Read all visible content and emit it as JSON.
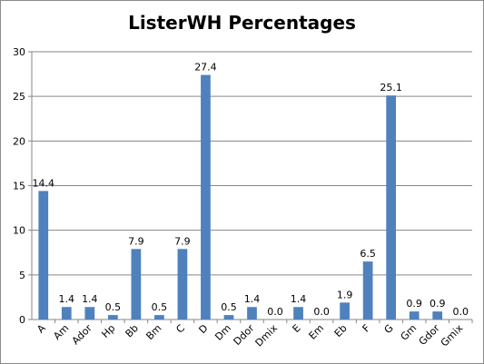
{
  "chart_data": {
    "type": "bar",
    "title": "ListerWH Percentages",
    "xlabel": "",
    "ylabel": "",
    "ylim": [
      0,
      30
    ],
    "yticks": [
      0,
      5,
      10,
      15,
      20,
      25,
      30
    ],
    "grid": true,
    "legend": "none",
    "bar_color": "#4f81bd",
    "categories": [
      "A",
      "Am",
      "Ador",
      "Hp",
      "Bb",
      "Bm",
      "C",
      "D",
      "Dm",
      "Ddor",
      "Dmix",
      "E",
      "Em",
      "Eb",
      "F",
      "G",
      "Gm",
      "Gdor",
      "Gmix"
    ],
    "values": [
      14.4,
      1.4,
      1.4,
      0.5,
      7.9,
      0.5,
      7.9,
      27.4,
      0.5,
      1.4,
      0.0,
      1.4,
      0.0,
      1.9,
      6.5,
      25.1,
      0.9,
      0.9,
      0.0
    ],
    "data_labels": [
      "14.4",
      "1.4",
      "1.4",
      "0.5",
      "7.9",
      "0.5",
      "7.9",
      "27.4",
      "0.5",
      "1.4",
      "0.0",
      "1.4",
      "0.0",
      "1.9",
      "6.5",
      "25.1",
      "0.9",
      "0.9",
      "0.0"
    ]
  }
}
